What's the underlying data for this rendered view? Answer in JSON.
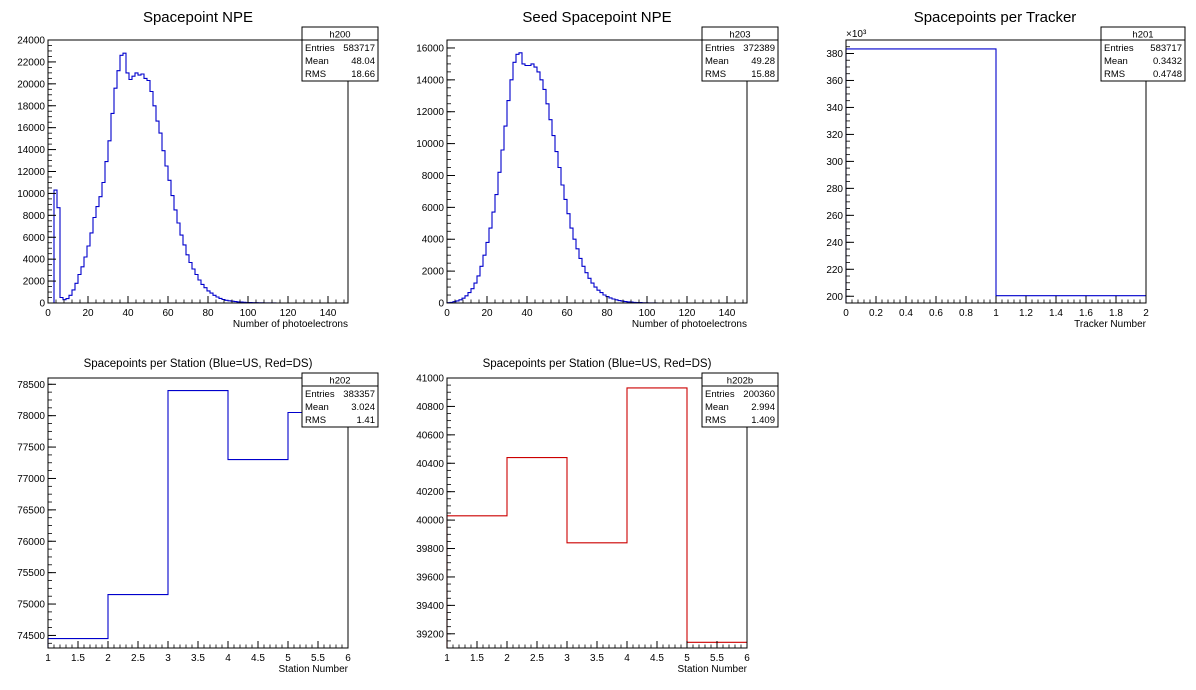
{
  "chart_data": [
    {
      "id": "h200",
      "type": "histogram",
      "title": "Spacepoint NPE",
      "xlabel": "Number of photoelectrons",
      "ylabel": "",
      "xlim": [
        0,
        150
      ],
      "ylim": [
        0,
        24000
      ],
      "line_color": "#0000cc",
      "xticks": [
        0,
        20,
        40,
        60,
        80,
        100,
        120,
        140
      ],
      "yticks": [
        0,
        2000,
        4000,
        6000,
        8000,
        10000,
        12000,
        14000,
        16000,
        18000,
        20000,
        22000,
        24000
      ],
      "stats": {
        "name": "h200",
        "entries_label": "Entries",
        "entries": "583717",
        "mean_label": "Mean",
        "mean": "48.04",
        "rms_label": "RMS",
        "rms": "18.66"
      },
      "bins": {
        "start": 3,
        "width": 1.5,
        "values": [
          10300,
          8700,
          500,
          300,
          400,
          700,
          1200,
          1800,
          2600,
          3300,
          4200,
          5200,
          6400,
          7800,
          8800,
          9700,
          11000,
          12900,
          14800,
          17300,
          19600,
          21200,
          22600,
          22800,
          21000,
          20400,
          20700,
          21000,
          20800,
          20900,
          20500,
          20300,
          19300,
          18000,
          16600,
          15500,
          13900,
          12500,
          11200,
          9800,
          8500,
          7300,
          6200,
          5300,
          4400,
          3700,
          3100,
          2600,
          2100,
          1700,
          1400,
          1100,
          900,
          700,
          550,
          420,
          320,
          250,
          200,
          160,
          130,
          100,
          80,
          60,
          50,
          40,
          30,
          25,
          20,
          15,
          12,
          10,
          8,
          5
        ]
      }
    },
    {
      "id": "h203",
      "type": "histogram",
      "title": "Seed Spacepoint NPE",
      "xlabel": "Number of photoelectrons",
      "ylabel": "",
      "xlim": [
        0,
        150
      ],
      "ylim": [
        0,
        16500
      ],
      "line_color": "#0000cc",
      "xticks": [
        0,
        20,
        40,
        60,
        80,
        100,
        120,
        140
      ],
      "yticks": [
        0,
        2000,
        4000,
        6000,
        8000,
        10000,
        12000,
        14000,
        16000
      ],
      "stats": {
        "name": "h203",
        "entries_label": "Entries",
        "entries": "372389",
        "mean_label": "Mean",
        "mean": "49.28",
        "rms_label": "RMS",
        "rms": "15.88"
      },
      "bins": {
        "start": 0,
        "width": 1.5,
        "values": [
          20,
          40,
          80,
          130,
          200,
          300,
          450,
          650,
          900,
          1250,
          1700,
          2300,
          3000,
          3800,
          4700,
          5700,
          6800,
          8200,
          9600,
          11100,
          12700,
          14000,
          15100,
          15600,
          15700,
          15000,
          14900,
          14900,
          15000,
          14800,
          14500,
          14000,
          13400,
          12500,
          11500,
          10500,
          9500,
          8500,
          7400,
          6500,
          5600,
          4700,
          4000,
          3400,
          2800,
          2300,
          1900,
          1550,
          1250,
          1000,
          800,
          650,
          500,
          400,
          320,
          250,
          200,
          150,
          120,
          90,
          70,
          55,
          40,
          30,
          22,
          15,
          10,
          8,
          6,
          4,
          3,
          2
        ]
      }
    },
    {
      "id": "h201",
      "type": "histogram",
      "title": "Spacepoints per Tracker",
      "xlabel": "Tracker Number",
      "ylabel": "",
      "exponent_label": "×10³",
      "xlim": [
        0,
        2
      ],
      "ylim": [
        195,
        390
      ],
      "line_color": "#0000cc",
      "xticks": [
        0,
        0.2,
        0.4,
        0.6,
        0.8,
        1,
        1.2,
        1.4,
        1.6,
        1.8,
        2
      ],
      "yticks": [
        200,
        220,
        240,
        260,
        280,
        300,
        320,
        340,
        360,
        380
      ],
      "stats": {
        "name": "h201",
        "entries_label": "Entries",
        "entries": "583717",
        "mean_label": "Mean",
        "mean": "0.3432",
        "rms_label": "RMS",
        "rms": "0.4748"
      },
      "bins": {
        "start": 0,
        "width": 1,
        "values": [
          383.4,
          200.4
        ]
      }
    },
    {
      "id": "h202",
      "type": "histogram",
      "title": "Spacepoints per Station (Blue=US, Red=DS)",
      "xlabel": "Station Number",
      "ylabel": "",
      "xlim": [
        1,
        6
      ],
      "ylim": [
        74300,
        78600
      ],
      "line_color": "#0000cc",
      "xticks": [
        1,
        1.5,
        2,
        2.5,
        3,
        3.5,
        4,
        4.5,
        5,
        5.5,
        6
      ],
      "yticks": [
        74500,
        75000,
        75500,
        76000,
        76500,
        77000,
        77500,
        78000,
        78500
      ],
      "stats": {
        "name": "h202",
        "entries_label": "Entries",
        "entries": "383357",
        "mean_label": "Mean",
        "mean": "3.024",
        "rms_label": "RMS",
        "rms": "1.41"
      },
      "bins": {
        "start": 1,
        "width": 1,
        "values": [
          74450,
          75150,
          78400,
          77300,
          78050
        ]
      }
    },
    {
      "id": "h202b",
      "type": "histogram",
      "title": "Spacepoints per Station (Blue=US, Red=DS)",
      "xlabel": "Station Number",
      "ylabel": "",
      "xlim": [
        1,
        6
      ],
      "ylim": [
        39100,
        41000
      ],
      "line_color": "#cc0000",
      "xticks": [
        1,
        1.5,
        2,
        2.5,
        3,
        3.5,
        4,
        4.5,
        5,
        5.5,
        6
      ],
      "yticks": [
        39200,
        39400,
        39600,
        39800,
        40000,
        40200,
        40400,
        40600,
        40800,
        41000
      ],
      "stats": {
        "name": "h202b",
        "entries_label": "Entries",
        "entries": "200360",
        "mean_label": "Mean",
        "mean": "2.994",
        "rms_label": "RMS",
        "rms": "1.409"
      },
      "bins": {
        "start": 1,
        "width": 1,
        "values": [
          40030,
          40440,
          39840,
          40930,
          39140
        ]
      }
    }
  ]
}
